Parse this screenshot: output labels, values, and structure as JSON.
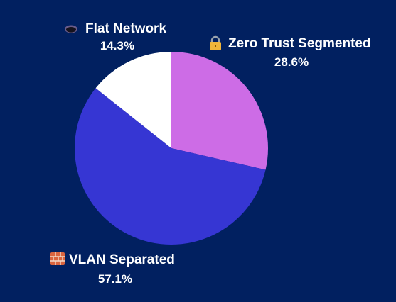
{
  "chart_data": {
    "type": "pie",
    "title": "",
    "legend": "none",
    "start_angle_deg": 0,
    "direction": "clockwise",
    "slices": [
      {
        "label": "Zero Trust Segmented",
        "value": 28.6,
        "percent_label": "28.6%",
        "icon": "lock-icon",
        "color": "#CD6CE6"
      },
      {
        "label": "VLAN Separated",
        "value": 57.1,
        "percent_label": "57.1%",
        "icon": "brick-wall-icon",
        "color": "#3636D3"
      },
      {
        "label": "Flat Network",
        "value": 14.3,
        "percent_label": "14.3%",
        "icon": "hole-icon",
        "color": "#FFFFFF"
      }
    ]
  }
}
